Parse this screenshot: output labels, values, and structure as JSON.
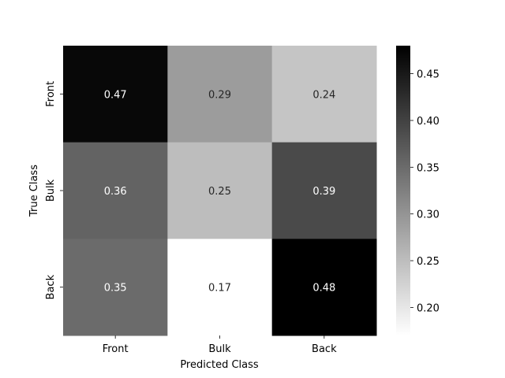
{
  "chart_data": {
    "type": "heatmap",
    "x_categories": [
      "Front",
      "Bulk",
      "Back"
    ],
    "y_categories": [
      "Front",
      "Bulk",
      "Back"
    ],
    "values": [
      [
        0.47,
        0.29,
        0.24
      ],
      [
        0.36,
        0.25,
        0.39
      ],
      [
        0.35,
        0.17,
        0.48
      ]
    ],
    "labels": [
      [
        "0.47",
        "0.29",
        "0.24"
      ],
      [
        "0.36",
        "0.25",
        "0.39"
      ],
      [
        "0.35",
        "0.17",
        "0.48"
      ]
    ],
    "xlabel": "Predicted Class",
    "ylabel": "True Class",
    "colormap": "Greys",
    "vmin": 0.17,
    "vmax": 0.48,
    "colorbar_ticks": [
      0.2,
      0.25,
      0.3,
      0.35,
      0.4,
      0.45
    ],
    "colorbar_tick_labels": [
      "0.20",
      "0.25",
      "0.30",
      "0.35",
      "0.40",
      "0.45"
    ]
  }
}
